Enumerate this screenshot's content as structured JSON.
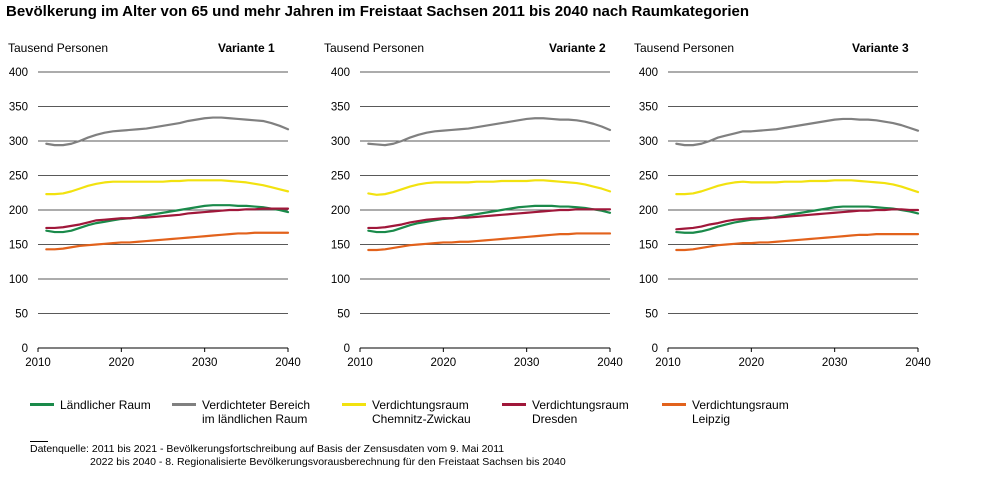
{
  "title": "Bevölkerung im Alter von 65 und mehr Jahren im Freistaat Sachsen 2011 bis 2040 nach Raumkategorien",
  "y_unit_label": "Tausend Personen",
  "chart_data": [
    {
      "type": "line",
      "variant_label": "Variante 1",
      "xlim": [
        2010,
        2040
      ],
      "ylim": [
        0,
        400
      ],
      "xticks": [
        2010,
        2020,
        2030,
        2040
      ],
      "yticks": [
        0,
        50,
        100,
        150,
        200,
        250,
        300,
        350,
        400
      ],
      "x": [
        2011,
        2012,
        2013,
        2014,
        2015,
        2016,
        2017,
        2018,
        2019,
        2020,
        2021,
        2022,
        2023,
        2024,
        2025,
        2026,
        2027,
        2028,
        2029,
        2030,
        2031,
        2032,
        2033,
        2034,
        2035,
        2036,
        2037,
        2038,
        2039,
        2040
      ],
      "series": [
        {
          "name": "Ländlicher Raum",
          "color": "#1a8a4a",
          "values": [
            170,
            168,
            168,
            170,
            174,
            178,
            181,
            183,
            185,
            187,
            188,
            190,
            192,
            194,
            196,
            198,
            200,
            202,
            204,
            206,
            207,
            207,
            207,
            206,
            206,
            205,
            204,
            202,
            200,
            197
          ]
        },
        {
          "name": "Verdichteter Bereich im ländlichen Raum",
          "color": "#808080",
          "values": [
            296,
            294,
            294,
            296,
            300,
            305,
            309,
            312,
            314,
            315,
            316,
            317,
            318,
            320,
            322,
            324,
            326,
            329,
            331,
            333,
            334,
            334,
            333,
            332,
            331,
            330,
            329,
            326,
            322,
            317
          ]
        },
        {
          "name": "Verdichtungsraum Chemnitz-Zwickau",
          "color": "#f2e20f",
          "values": [
            223,
            223,
            224,
            227,
            231,
            235,
            238,
            240,
            241,
            241,
            241,
            241,
            241,
            241,
            241,
            242,
            242,
            243,
            243,
            243,
            243,
            243,
            242,
            241,
            240,
            238,
            236,
            233,
            230,
            227
          ]
        },
        {
          "name": "Verdichtungsraum Dresden",
          "color": "#a0173a",
          "values": [
            174,
            174,
            175,
            177,
            179,
            182,
            185,
            186,
            187,
            188,
            188,
            189,
            189,
            190,
            191,
            192,
            193,
            195,
            196,
            197,
            198,
            199,
            200,
            200,
            201,
            201,
            202,
            202,
            202,
            202
          ]
        },
        {
          "name": "Verdichtungsraum Leipzig",
          "color": "#e2621c",
          "values": [
            143,
            143,
            144,
            146,
            148,
            149,
            150,
            151,
            152,
            153,
            153,
            154,
            155,
            156,
            157,
            158,
            159,
            160,
            161,
            162,
            163,
            164,
            165,
            166,
            166,
            167,
            167,
            167,
            167,
            167
          ]
        }
      ]
    },
    {
      "type": "line",
      "variant_label": "Variante 2",
      "xlim": [
        2010,
        2040
      ],
      "ylim": [
        0,
        400
      ],
      "xticks": [
        2010,
        2020,
        2030,
        2040
      ],
      "yticks": [
        0,
        50,
        100,
        150,
        200,
        250,
        300,
        350,
        400
      ],
      "x": [
        2011,
        2012,
        2013,
        2014,
        2015,
        2016,
        2017,
        2018,
        2019,
        2020,
        2021,
        2022,
        2023,
        2024,
        2025,
        2026,
        2027,
        2028,
        2029,
        2030,
        2031,
        2032,
        2033,
        2034,
        2035,
        2036,
        2037,
        2038,
        2039,
        2040
      ],
      "series": [
        {
          "name": "Ländlicher Raum",
          "color": "#1a8a4a",
          "values": [
            170,
            168,
            168,
            170,
            174,
            178,
            181,
            183,
            185,
            187,
            188,
            190,
            192,
            194,
            196,
            198,
            200,
            202,
            204,
            205,
            206,
            206,
            206,
            205,
            205,
            204,
            203,
            201,
            199,
            196
          ]
        },
        {
          "name": "Verdichteter Bereich im ländlichen Raum",
          "color": "#808080",
          "values": [
            296,
            295,
            294,
            296,
            300,
            305,
            309,
            312,
            314,
            315,
            316,
            317,
            318,
            320,
            322,
            324,
            326,
            328,
            330,
            332,
            333,
            333,
            332,
            331,
            331,
            330,
            328,
            325,
            321,
            316
          ]
        },
        {
          "name": "Verdichtungsraum Chemnitz-Zwickau",
          "color": "#f2e20f",
          "values": [
            224,
            222,
            223,
            226,
            230,
            234,
            237,
            239,
            240,
            240,
            240,
            240,
            240,
            241,
            241,
            241,
            242,
            242,
            242,
            242,
            243,
            243,
            242,
            241,
            240,
            239,
            237,
            234,
            231,
            227
          ]
        },
        {
          "name": "Verdichtungsraum Dresden",
          "color": "#a0173a",
          "values": [
            174,
            174,
            175,
            177,
            179,
            182,
            184,
            186,
            187,
            188,
            188,
            189,
            189,
            190,
            191,
            192,
            193,
            194,
            195,
            196,
            197,
            198,
            199,
            200,
            200,
            201,
            201,
            201,
            201,
            201
          ]
        },
        {
          "name": "Verdichtungsraum Leipzig",
          "color": "#e2621c",
          "values": [
            142,
            142,
            143,
            145,
            147,
            149,
            150,
            151,
            152,
            153,
            153,
            154,
            154,
            155,
            156,
            157,
            158,
            159,
            160,
            161,
            162,
            163,
            164,
            165,
            165,
            166,
            166,
            166,
            166,
            166
          ]
        }
      ]
    },
    {
      "type": "line",
      "variant_label": "Variante 3",
      "xlim": [
        2010,
        2040
      ],
      "ylim": [
        0,
        400
      ],
      "xticks": [
        2010,
        2020,
        2030,
        2040
      ],
      "yticks": [
        0,
        50,
        100,
        150,
        200,
        250,
        300,
        350,
        400
      ],
      "x": [
        2011,
        2012,
        2013,
        2014,
        2015,
        2016,
        2017,
        2018,
        2019,
        2020,
        2021,
        2022,
        2023,
        2024,
        2025,
        2026,
        2027,
        2028,
        2029,
        2030,
        2031,
        2032,
        2033,
        2034,
        2035,
        2036,
        2037,
        2038,
        2039,
        2040
      ],
      "series": [
        {
          "name": "Ländlicher Raum",
          "color": "#1a8a4a",
          "values": [
            168,
            167,
            167,
            169,
            172,
            176,
            179,
            182,
            184,
            186,
            187,
            188,
            190,
            192,
            194,
            196,
            198,
            200,
            202,
            204,
            205,
            205,
            205,
            205,
            204,
            203,
            202,
            200,
            198,
            195
          ]
        },
        {
          "name": "Verdichteter Bereich im ländlichen Raum",
          "color": "#808080",
          "values": [
            296,
            294,
            294,
            296,
            300,
            305,
            308,
            311,
            314,
            314,
            315,
            316,
            317,
            319,
            321,
            323,
            325,
            327,
            329,
            331,
            332,
            332,
            331,
            331,
            330,
            328,
            326,
            323,
            319,
            315
          ]
        },
        {
          "name": "Verdichtungsraum Chemnitz-Zwickau",
          "color": "#f2e20f",
          "values": [
            223,
            223,
            224,
            227,
            231,
            235,
            238,
            240,
            241,
            240,
            240,
            240,
            240,
            241,
            241,
            241,
            242,
            242,
            242,
            243,
            243,
            243,
            242,
            241,
            240,
            239,
            237,
            234,
            230,
            226
          ]
        },
        {
          "name": "Verdichtungsraum Dresden",
          "color": "#a0173a",
          "values": [
            172,
            173,
            174,
            176,
            179,
            181,
            184,
            186,
            187,
            188,
            188,
            189,
            189,
            190,
            191,
            192,
            193,
            194,
            195,
            196,
            197,
            198,
            199,
            199,
            200,
            200,
            201,
            201,
            200,
            200
          ]
        },
        {
          "name": "Verdichtungsraum Leipzig",
          "color": "#e2621c",
          "values": [
            142,
            142,
            143,
            145,
            147,
            149,
            150,
            151,
            152,
            152,
            153,
            153,
            154,
            155,
            156,
            157,
            158,
            159,
            160,
            161,
            162,
            163,
            164,
            164,
            165,
            165,
            165,
            165,
            165,
            165
          ]
        }
      ]
    }
  ],
  "legend": [
    {
      "label": "Ländlicher Raum",
      "color": "#1a8a4a"
    },
    {
      "label": "Verdichteter Bereich\nim ländlichen Raum",
      "color": "#808080"
    },
    {
      "label": "Verdichtungsraum\nChemnitz-Zwickau",
      "color": "#f2e20f"
    },
    {
      "label": "Verdichtungsraum\nDresden",
      "color": "#a0173a"
    },
    {
      "label": "Verdichtungsraum\nLeipzig",
      "color": "#e2621c"
    }
  ],
  "source": {
    "line1": "Datenquelle:  2011 bis 2021 - Bevölkerungsfortschreibung auf Basis der Zensusdaten vom 9. Mai 2011",
    "line2": "2022 bis 2040 - 8. Regionalisierte Bevölkerungsvorausberechnung für den Freistaat Sachsen bis 2040"
  }
}
